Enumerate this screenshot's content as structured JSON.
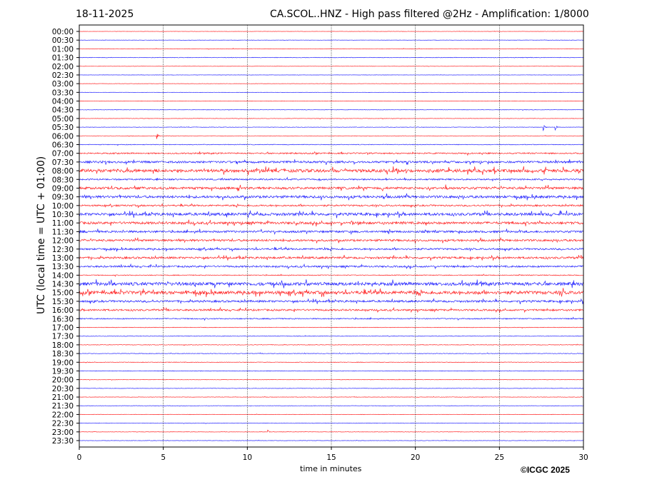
{
  "header": {
    "date": "18-11-2025",
    "title": "CA.SCOL..HNZ - High pass filtered @2Hz - Amplification: 1/8000"
  },
  "footer": {
    "copyright": "©ICGC 2025"
  },
  "chart_data": {
    "type": "line",
    "xlabel": "time in minutes",
    "ylabel": "UTC (local time = UTC + 01:00)",
    "xlim": [
      0,
      30
    ],
    "xticks": [
      "0",
      "5",
      "10",
      "15",
      "20",
      "25",
      "30"
    ],
    "grid": "vertical dotted at every 5 minutes",
    "colors": {
      "hour": "#ff0000",
      "half_hour": "#0000ff"
    },
    "rows": [
      {
        "label": "00:00",
        "noise_level": 0.2
      },
      {
        "label": "00:30",
        "noise_level": 0.2
      },
      {
        "label": "01:00",
        "noise_level": 0.3
      },
      {
        "label": "01:30",
        "noise_level": 0.4
      },
      {
        "label": "02:00",
        "noise_level": 0.2
      },
      {
        "label": "02:30",
        "noise_level": 0.2
      },
      {
        "label": "03:00",
        "noise_level": 0.2
      },
      {
        "label": "03:30",
        "noise_level": 0.2
      },
      {
        "label": "04:00",
        "noise_level": 0.3
      },
      {
        "label": "04:30",
        "noise_level": 0.3
      },
      {
        "label": "05:00",
        "noise_level": 0.3
      },
      {
        "label": "05:30",
        "noise_level": 0.3
      },
      {
        "label": "06:00",
        "noise_level": 0.3
      },
      {
        "label": "06:30",
        "noise_level": 0.5
      },
      {
        "label": "07:00",
        "noise_level": 1.0
      },
      {
        "label": "07:30",
        "noise_level": 1.5
      },
      {
        "label": "08:00",
        "noise_level": 2.3
      },
      {
        "label": "08:30",
        "noise_level": 1.1
      },
      {
        "label": "09:00",
        "noise_level": 1.7
      },
      {
        "label": "09:30",
        "noise_level": 1.8
      },
      {
        "label": "10:00",
        "noise_level": 1.2
      },
      {
        "label": "10:30",
        "noise_level": 2.0
      },
      {
        "label": "11:00",
        "noise_level": 1.8
      },
      {
        "label": "11:30",
        "noise_level": 1.5
      },
      {
        "label": "12:00",
        "noise_level": 1.5
      },
      {
        "label": "12:30",
        "noise_level": 1.3
      },
      {
        "label": "13:00",
        "noise_level": 1.5
      },
      {
        "label": "13:30",
        "noise_level": 1.3
      },
      {
        "label": "14:00",
        "noise_level": 0.6
      },
      {
        "label": "14:30",
        "noise_level": 2.4
      },
      {
        "label": "15:00",
        "noise_level": 2.4
      },
      {
        "label": "15:30",
        "noise_level": 1.5
      },
      {
        "label": "16:00",
        "noise_level": 1.3
      },
      {
        "label": "16:30",
        "noise_level": 0.8
      },
      {
        "label": "17:00",
        "noise_level": 0.4
      },
      {
        "label": "17:30",
        "noise_level": 0.4
      },
      {
        "label": "18:00",
        "noise_level": 0.4
      },
      {
        "label": "18:30",
        "noise_level": 0.4
      },
      {
        "label": "19:00",
        "noise_level": 0.4
      },
      {
        "label": "19:30",
        "noise_level": 0.4
      },
      {
        "label": "20:00",
        "noise_level": 0.3
      },
      {
        "label": "20:30",
        "noise_level": 0.3
      },
      {
        "label": "21:00",
        "noise_level": 0.3
      },
      {
        "label": "21:30",
        "noise_level": 0.3
      },
      {
        "label": "22:00",
        "noise_level": 0.3
      },
      {
        "label": "22:30",
        "noise_level": 0.3
      },
      {
        "label": "23:00",
        "noise_level": 0.3
      },
      {
        "label": "23:30",
        "noise_level": 0.3
      }
    ],
    "events": [
      {
        "row": "05:30",
        "minute": 27.6,
        "amplitude": 5
      },
      {
        "row": "05:30",
        "minute": 28.3,
        "amplitude": 5
      },
      {
        "row": "06:00",
        "minute": 4.6,
        "amplitude": 5
      },
      {
        "row": "09:00",
        "minute": 21.8,
        "amplitude": 4
      },
      {
        "row": "14:30",
        "minute": 1.9,
        "amplitude": 4
      },
      {
        "row": "15:00",
        "minute": 6.3,
        "amplitude": 4
      },
      {
        "row": "23:00",
        "minute": 11.2,
        "amplitude": 3
      }
    ]
  }
}
